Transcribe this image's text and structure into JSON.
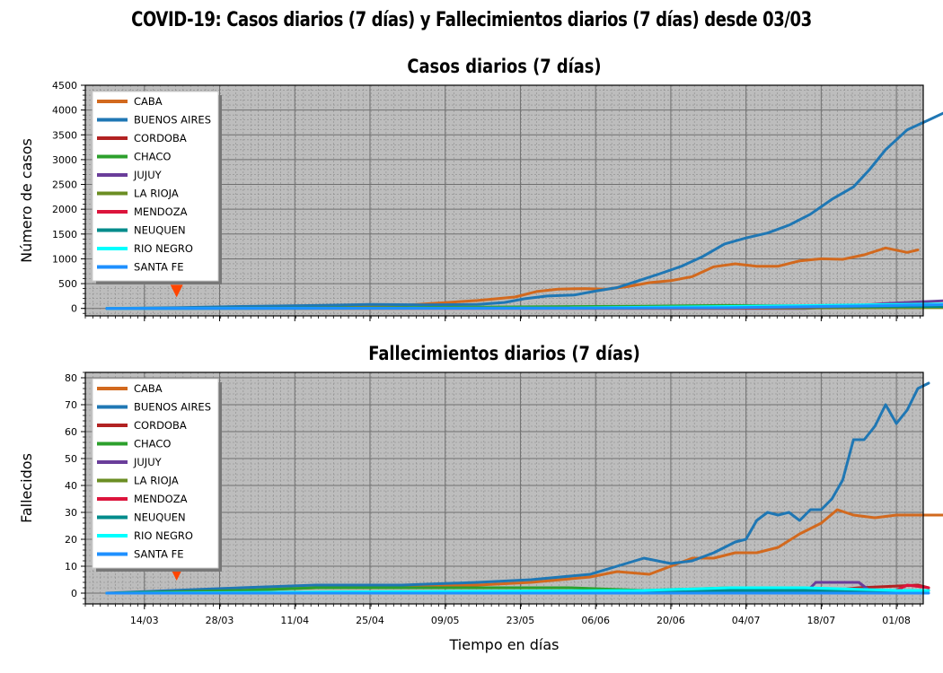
{
  "suptitle": "COVID-19: Casos diarios (7 días) y Fallecimientos diarios (7 días) desde 03/03",
  "xlabel": "Tiempo en días",
  "x_ticks": [
    "14/03",
    "28/03",
    "11/04",
    "25/04",
    "09/05",
    "23/05",
    "06/06",
    "20/06",
    "04/07",
    "18/07",
    "01/08"
  ],
  "chart_data": [
    {
      "type": "line",
      "title": "Casos diarios (7 días)",
      "ylabel": "Número de casos",
      "ylim": [
        -150,
        4500
      ],
      "yticks": [
        0,
        500,
        1000,
        1500,
        2000,
        2500,
        3000,
        3500,
        4000,
        4500
      ],
      "xlim": [
        "03/03",
        "06/08"
      ],
      "grid": true,
      "legend": "upper-left",
      "marker": {
        "date": "20/03",
        "value": 350,
        "shape": "triangle-down",
        "color": "#ff4500"
      },
      "series": [
        {
          "name": "CABA",
          "color": "#d2691e",
          "points": [
            [
              "07/03",
              0
            ],
            [
              "20/03",
              5
            ],
            [
              "01/04",
              15
            ],
            [
              "15/04",
              30
            ],
            [
              "01/05",
              60
            ],
            [
              "08/05",
              110
            ],
            [
              "15/05",
              160
            ],
            [
              "22/05",
              230
            ],
            [
              "26/05",
              340
            ],
            [
              "30/05",
              390
            ],
            [
              "04/06",
              400
            ],
            [
              "08/06",
              390
            ],
            [
              "12/06",
              440
            ],
            [
              "16/06",
              520
            ],
            [
              "20/06",
              560
            ],
            [
              "24/06",
              640
            ],
            [
              "28/06",
              840
            ],
            [
              "02/07",
              900
            ],
            [
              "06/07",
              850
            ],
            [
              "10/07",
              850
            ],
            [
              "14/07",
              960
            ],
            [
              "18/07",
              1000
            ],
            [
              "22/07",
              990
            ],
            [
              "26/07",
              1080
            ],
            [
              "30/07",
              1220
            ],
            [
              "03/08",
              1130
            ],
            [
              "05/08",
              1180
            ]
          ]
        },
        {
          "name": "BUENOS AIRES",
          "color": "#1f77b4",
          "points": [
            [
              "07/03",
              0
            ],
            [
              "20/03",
              15
            ],
            [
              "01/04",
              40
            ],
            [
              "15/04",
              60
            ],
            [
              "25/04",
              80
            ],
            [
              "05/05",
              70
            ],
            [
              "15/05",
              80
            ],
            [
              "20/05",
              120
            ],
            [
              "24/05",
              200
            ],
            [
              "28/05",
              250
            ],
            [
              "02/06",
              270
            ],
            [
              "06/06",
              350
            ],
            [
              "10/06",
              420
            ],
            [
              "14/06",
              560
            ],
            [
              "18/06",
              700
            ],
            [
              "22/06",
              850
            ],
            [
              "26/06",
              1050
            ],
            [
              "30/06",
              1300
            ],
            [
              "04/07",
              1420
            ],
            [
              "08/07",
              1520
            ],
            [
              "12/07",
              1680
            ],
            [
              "16/07",
              1900
            ],
            [
              "20/07",
              2200
            ],
            [
              "24/07",
              2450
            ],
            [
              "27/07",
              2800
            ],
            [
              "30/07",
              3200
            ],
            [
              "03/08",
              3600
            ],
            [
              "07/08",
              3800
            ],
            [
              "10/08",
              3950
            ],
            [
              "11/08",
              4000
            ]
          ]
        },
        {
          "name": "CORDOBA",
          "color": "#b22222",
          "points": [
            [
              "07/03",
              0
            ],
            [
              "01/06",
              5
            ],
            [
              "01/07",
              15
            ],
            [
              "01/08",
              20
            ],
            [
              "11/08",
              20
            ]
          ]
        },
        {
          "name": "CHACO",
          "color": "#2ca02c",
          "points": [
            [
              "07/03",
              0
            ],
            [
              "15/04",
              10
            ],
            [
              "15/05",
              25
            ],
            [
              "15/06",
              45
            ],
            [
              "30/06",
              60
            ],
            [
              "15/07",
              50
            ],
            [
              "01/08",
              30
            ],
            [
              "11/08",
              25
            ]
          ]
        },
        {
          "name": "JUJUY",
          "color": "#6a3d9a",
          "points": [
            [
              "07/03",
              0
            ],
            [
              "15/07",
              0
            ],
            [
              "25/07",
              60
            ],
            [
              "30/07",
              100
            ],
            [
              "05/08",
              130
            ],
            [
              "11/08",
              160
            ]
          ]
        },
        {
          "name": "LA RIOJA",
          "color": "#6b8e23",
          "points": [
            [
              "07/03",
              0
            ],
            [
              "01/07",
              5
            ],
            [
              "01/08",
              15
            ],
            [
              "11/08",
              15
            ]
          ]
        },
        {
          "name": "MENDOZA",
          "color": "#dc143c",
          "points": [
            [
              "07/03",
              0
            ],
            [
              "01/07",
              10
            ],
            [
              "20/07",
              30
            ],
            [
              "01/08",
              50
            ],
            [
              "11/08",
              60
            ]
          ]
        },
        {
          "name": "NEUQUEN",
          "color": "#008b8b",
          "points": [
            [
              "07/03",
              0
            ],
            [
              "01/06",
              5
            ],
            [
              "01/07",
              20
            ],
            [
              "01/08",
              40
            ],
            [
              "11/08",
              40
            ]
          ]
        },
        {
          "name": "RIO NEGRO",
          "color": "#00ffff",
          "points": [
            [
              "07/03",
              0
            ],
            [
              "01/06",
              10
            ],
            [
              "01/07",
              40
            ],
            [
              "01/08",
              80
            ],
            [
              "11/08",
              90
            ]
          ]
        },
        {
          "name": "SANTA FE",
          "color": "#1e90ff",
          "points": [
            [
              "07/03",
              0
            ],
            [
              "01/06",
              5
            ],
            [
              "01/07",
              15
            ],
            [
              "01/08",
              60
            ],
            [
              "11/08",
              80
            ]
          ]
        }
      ]
    },
    {
      "type": "line",
      "title": "Fallecimientos diarios (7 días)",
      "ylabel": "Fallecidos",
      "ylim": [
        -4,
        82
      ],
      "yticks": [
        0,
        10,
        20,
        30,
        40,
        50,
        60,
        70,
        80
      ],
      "xlim": [
        "03/03",
        "06/08"
      ],
      "grid": true,
      "legend": "upper-left",
      "marker": {
        "date": "20/03",
        "value": 7,
        "shape": "triangle-down",
        "color": "#ff4500"
      },
      "series": [
        {
          "name": "CABA",
          "color": "#d2691e",
          "points": [
            [
              "07/03",
              0
            ],
            [
              "01/04",
              1
            ],
            [
              "15/04",
              2
            ],
            [
              "01/05",
              3
            ],
            [
              "15/05",
              3
            ],
            [
              "25/05",
              4
            ],
            [
              "05/06",
              6
            ],
            [
              "10/06",
              8
            ],
            [
              "16/06",
              7
            ],
            [
              "20/06",
              10
            ],
            [
              "24/06",
              13
            ],
            [
              "28/06",
              13
            ],
            [
              "02/07",
              15
            ],
            [
              "06/07",
              15
            ],
            [
              "10/07",
              17
            ],
            [
              "14/07",
              22
            ],
            [
              "18/07",
              26
            ],
            [
              "21/07",
              31
            ],
            [
              "24/07",
              29
            ],
            [
              "28/07",
              28
            ],
            [
              "01/08",
              29
            ],
            [
              "05/08",
              29
            ],
            [
              "11/08",
              29
            ]
          ]
        },
        {
          "name": "BUENOS AIRES",
          "color": "#1f77b4",
          "points": [
            [
              "07/03",
              0
            ],
            [
              "01/04",
              2
            ],
            [
              "15/04",
              3
            ],
            [
              "01/05",
              3
            ],
            [
              "15/05",
              4
            ],
            [
              "25/05",
              5
            ],
            [
              "05/06",
              7
            ],
            [
              "10/06",
              10
            ],
            [
              "15/06",
              13
            ],
            [
              "20/06",
              11
            ],
            [
              "24/06",
              12
            ],
            [
              "28/06",
              15
            ],
            [
              "02/07",
              19
            ],
            [
              "04/07",
              20
            ],
            [
              "06/07",
              27
            ],
            [
              "08/07",
              30
            ],
            [
              "10/07",
              29
            ],
            [
              "12/07",
              30
            ],
            [
              "14/07",
              27
            ],
            [
              "16/07",
              31
            ],
            [
              "18/07",
              31
            ],
            [
              "20/07",
              35
            ],
            [
              "22/07",
              42
            ],
            [
              "24/07",
              57
            ],
            [
              "26/07",
              57
            ],
            [
              "28/07",
              62
            ],
            [
              "30/07",
              70
            ],
            [
              "01/08",
              63
            ],
            [
              "03/08",
              68
            ],
            [
              "05/08",
              76
            ],
            [
              "07/08",
              78
            ]
          ]
        },
        {
          "name": "CORDOBA",
          "color": "#b22222",
          "points": [
            [
              "07/03",
              0
            ],
            [
              "15/07",
              0
            ],
            [
              "25/07",
              2
            ],
            [
              "05/08",
              3
            ],
            [
              "07/08",
              2
            ]
          ]
        },
        {
          "name": "CHACO",
          "color": "#2ca02c",
          "points": [
            [
              "07/03",
              0
            ],
            [
              "01/04",
              1
            ],
            [
              "15/04",
              2
            ],
            [
              "15/05",
              2
            ],
            [
              "01/06",
              2
            ],
            [
              "15/06",
              1
            ],
            [
              "01/07",
              2
            ],
            [
              "15/07",
              1
            ],
            [
              "07/08",
              1
            ]
          ]
        },
        {
          "name": "JUJUY",
          "color": "#6a3d9a",
          "points": [
            [
              "07/03",
              0
            ],
            [
              "15/07",
              0
            ],
            [
              "17/07",
              4
            ],
            [
              "25/07",
              4
            ],
            [
              "27/07",
              1
            ],
            [
              "07/08",
              1
            ]
          ]
        },
        {
          "name": "LA RIOJA",
          "color": "#6b8e23",
          "points": [
            [
              "07/03",
              0
            ],
            [
              "01/07",
              0
            ],
            [
              "20/07",
              1
            ],
            [
              "07/08",
              1
            ]
          ]
        },
        {
          "name": "MENDOZA",
          "color": "#dc143c",
          "points": [
            [
              "07/03",
              0
            ],
            [
              "15/07",
              0
            ],
            [
              "01/08",
              1
            ],
            [
              "03/08",
              3
            ],
            [
              "07/08",
              2
            ]
          ]
        },
        {
          "name": "NEUQUEN",
          "color": "#008b8b",
          "points": [
            [
              "07/03",
              0
            ],
            [
              "01/07",
              1
            ],
            [
              "07/08",
              1
            ]
          ]
        },
        {
          "name": "RIO NEGRO",
          "color": "#00ffff",
          "points": [
            [
              "07/03",
              0
            ],
            [
              "15/06",
              1
            ],
            [
              "01/07",
              2
            ],
            [
              "15/07",
              2
            ],
            [
              "01/08",
              1
            ],
            [
              "07/08",
              1
            ]
          ]
        },
        {
          "name": "SANTA FE",
          "color": "#1e90ff",
          "points": [
            [
              "07/03",
              0
            ],
            [
              "01/08",
              0
            ],
            [
              "07/08",
              0
            ]
          ]
        }
      ]
    }
  ]
}
